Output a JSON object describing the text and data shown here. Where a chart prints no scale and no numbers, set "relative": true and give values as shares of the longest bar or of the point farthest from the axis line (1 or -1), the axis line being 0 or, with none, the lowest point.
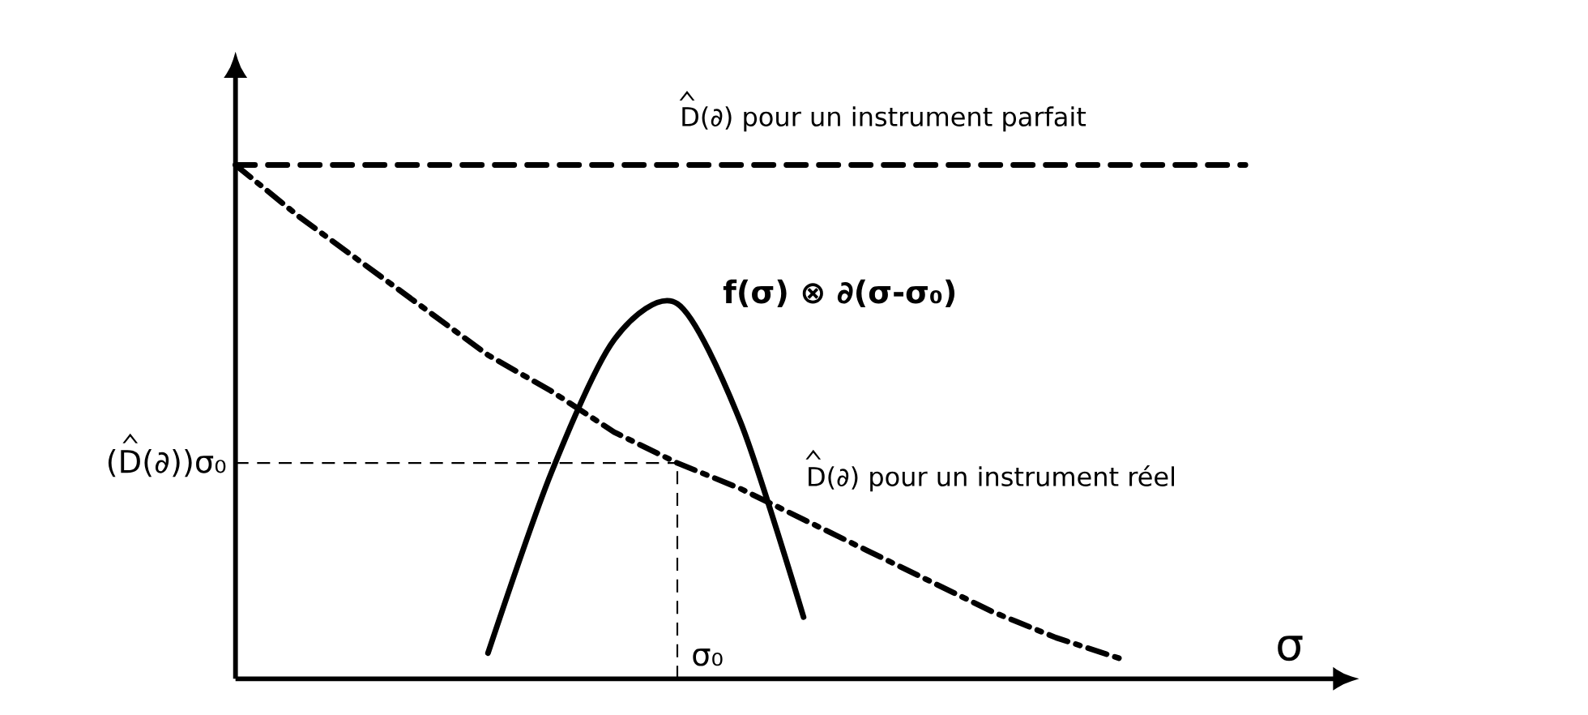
{
  "chart_data": {
    "type": "line",
    "relative": true,
    "legend": "top right",
    "xlabel": "σ",
    "categories": [
      null,
      null,
      null,
      null,
      null,
      null,
      null,
      null,
      null,
      null,
      null,
      null,
      null,
      null,
      null,
      null,
      null
    ],
    "series": [
      {
        "name": "D(∂) pour un instrument parfait",
        "color": "#000000",
        "line_style": "dashed",
        "values": [
          1,
          1,
          1,
          1,
          1,
          1,
          1,
          1,
          1,
          1,
          1,
          1,
          1,
          1,
          1,
          1,
          1
        ]
      },
      {
        "name": "D(∂) pour un instrument réel",
        "color": "#000000",
        "line_style": "dashdot",
        "values": [
          1.0,
          0.9,
          0.81,
          0.72,
          0.63,
          0.56,
          0.48,
          0.42,
          0.37,
          0.31,
          0.25,
          0.19,
          0.13,
          0.08,
          0.04,
          null,
          null
        ]
      },
      {
        "name": "f(σ) ⊗ ∂(σ-σ₀)",
        "color": "#000000",
        "line_style": "solid",
        "values": [
          null,
          null,
          null,
          null,
          0.05,
          0.4,
          0.66,
          0.73,
          0.5,
          0.12,
          null,
          null,
          null,
          null,
          null,
          null,
          null
        ]
      }
    ],
    "annotations": [
      "σ₀"
    ],
    "ref_lines": [
      {
        "axis": "y",
        "value": 0.42,
        "label": "(D(∂))σ₀",
        "line_style": "dashed"
      }
    ]
  }
}
